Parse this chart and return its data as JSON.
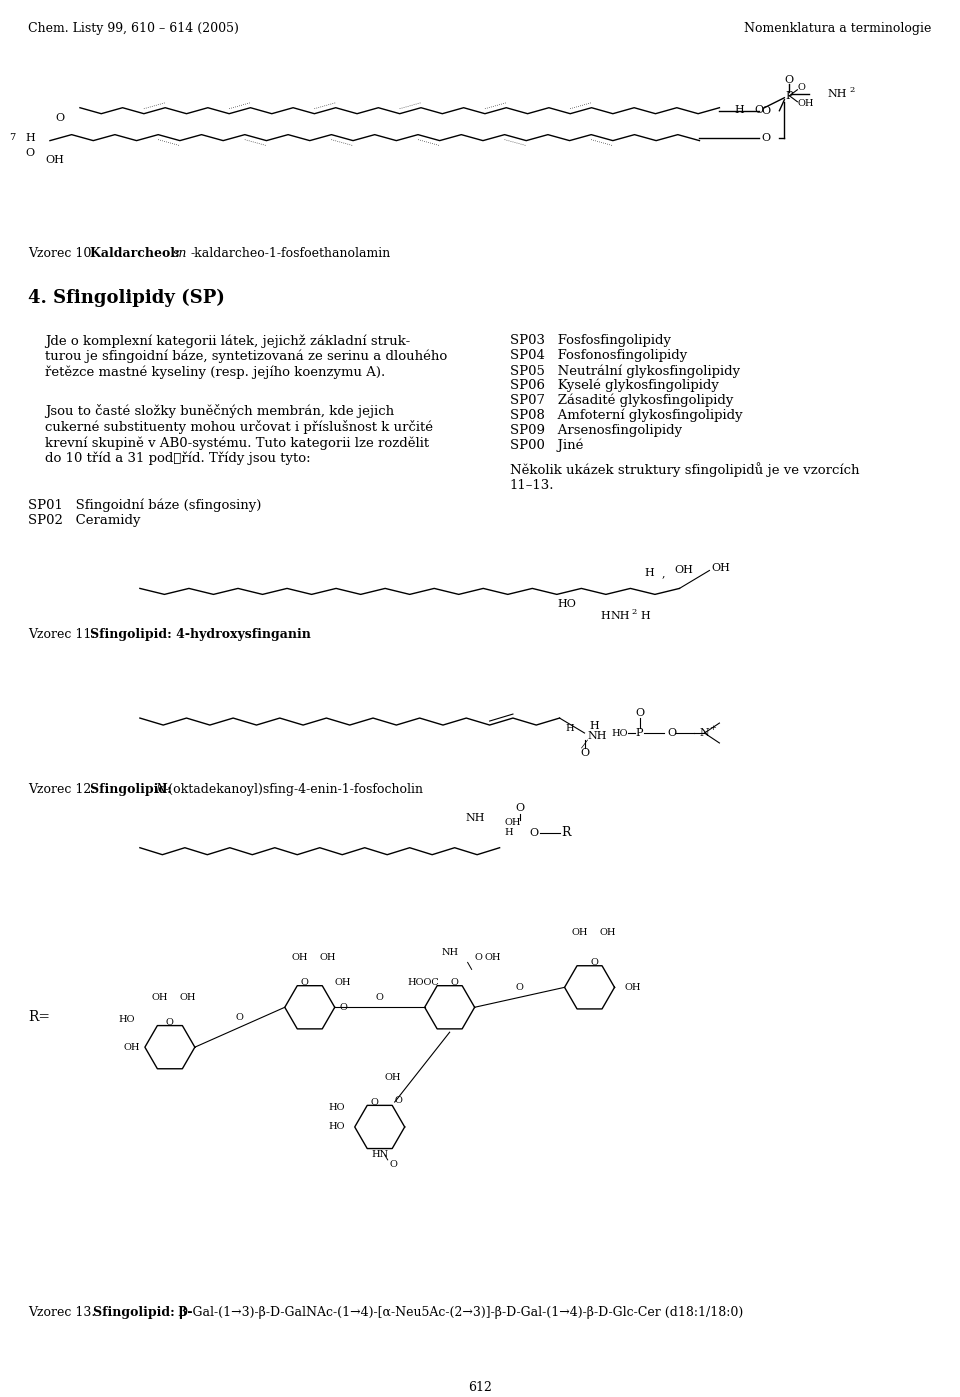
{
  "header_left": "Chem. Listy 99, 610 – 614 (2005)",
  "header_right": "Nomenklatura a terminologie",
  "footer_center": "612",
  "bg_color": "#ffffff",
  "text_color": "#000000",
  "section_title": "4. Sfingolipidy (SP)",
  "para1": "Jde o komplexní kategorii látek, jejichž základní struk-\nturou je sfingoidní báze, syntetizovaná ze serinu a dlouhého\nřetězce mastné kyseliny (resp. jejího koenzymu A).",
  "para2": "Jsou to časté složky buněčných membrán, kde jejich\ncukerné substituenty mohou určovat i příslušnost k určité\nkrevní skupině v AB0-systému. Tuto kategorii lze rozdělit\ndo 10 tříd a 31 podتříd. Třídy jsou tyto:",
  "sp_list_left": [
    "SP01   Sfingoidní báze (sfingosiny)",
    "SP02   Ceramidy"
  ],
  "sp_list_right": [
    "SP03   Fosfosfingolipidy",
    "SP04   Fosfonosfingolipidy",
    "SP05   Neutrální glykosfingolipidy",
    "SP06   Kyselé glykosfingolipidy",
    "SP07   Zásadité glykosfingolipidy",
    "SP08   Amfoterní glykosfingolipidy",
    "SP09   Arsenosfingolipidy",
    "SP00   Jiné"
  ],
  "closing_text": "Několik ukázek struktury sfingolipidů je ve vzorcích\n11–13.",
  "vzorec10_label": "Vzorec 10. ",
  "vzorec10_bold": "Kaldarcheol: ",
  "vzorec10_italic": "sn",
  "vzorec10_rest": "-kaldarcheo-1-fosfoethanolamin",
  "vzorec11_label": "Vzorec 11. ",
  "vzorec11_bold": "Sfingolipid: 4-hydroxysfinganin",
  "vzorec12_label": "Vzorec 12. ",
  "vzorec12_bold": "Sfingolipid: ",
  "vzorec12_italic": "N",
  "vzorec12_rest": "-(oktadekanoyl)sfing-4-enin-1-fosfocholin",
  "vzorec13_label": "Vzorec 13. ",
  "vzorec13_bold": "Sfingolipid: β-",
  "vzorec13_rest": "D-Gal-(1→3)-β-D-GalNAc-(1→4)-[α-Neu5Ac-(2→3)]-β-D-Gal-(1→4)-β-D-Glc-Cer (d18:1/18:0)"
}
